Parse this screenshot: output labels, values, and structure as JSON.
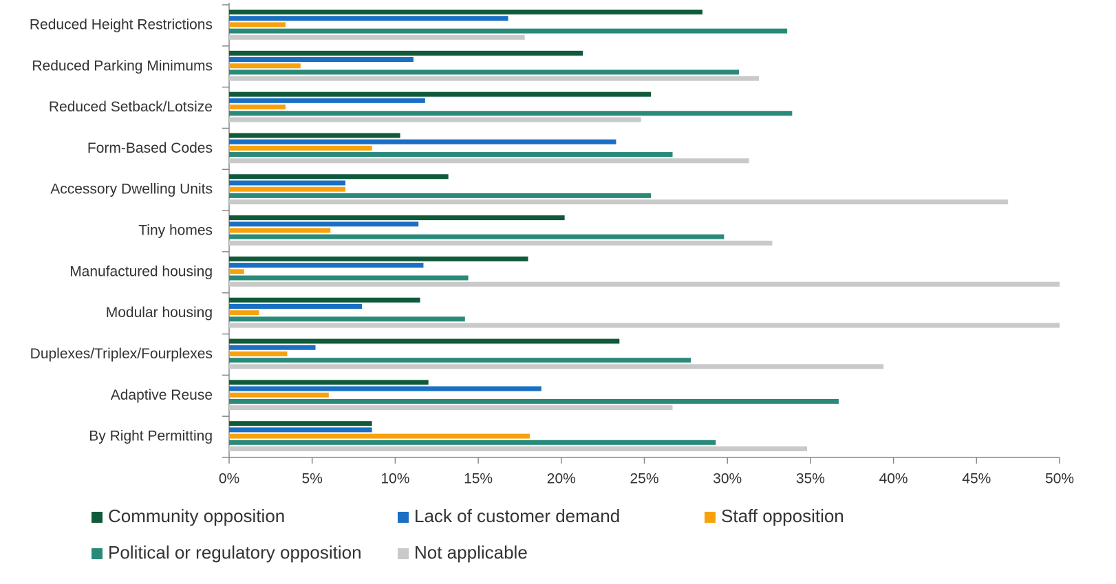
{
  "chart_data": {
    "type": "bar",
    "orientation": "horizontal",
    "categories": [
      "Reduced Height Restrictions",
      "Reduced Parking Minimums",
      "Reduced Setback/Lotsize",
      "Form-Based Codes",
      "Accessory Dwelling Units",
      "Tiny homes",
      "Manufactured housing",
      "Modular housing",
      "Duplexes/Triplex/Fourplexes",
      "Adaptive Reuse",
      "By Right Permitting"
    ],
    "series": [
      {
        "name": "Community opposition",
        "color": "#0f5a3a",
        "values": [
          28.5,
          21.3,
          25.4,
          10.3,
          13.2,
          20.2,
          18.0,
          11.5,
          23.5,
          12.0,
          8.6
        ]
      },
      {
        "name": "Lack of customer demand",
        "color": "#1a6fc4",
        "values": [
          16.8,
          11.1,
          11.8,
          23.3,
          7.0,
          11.4,
          11.7,
          8.0,
          5.2,
          18.8,
          8.6
        ]
      },
      {
        "name": "Staff opposition",
        "color": "#f7a20c",
        "values": [
          3.4,
          4.3,
          3.4,
          8.6,
          7.0,
          6.1,
          0.9,
          1.8,
          3.5,
          6.0,
          18.1
        ]
      },
      {
        "name": "Political or regulatory opposition",
        "color": "#2a8a7a",
        "values": [
          33.6,
          30.7,
          33.9,
          26.7,
          25.4,
          29.8,
          14.4,
          14.2,
          27.8,
          36.7,
          29.3
        ]
      },
      {
        "name": "Not applicable",
        "color": "#c9c9c9",
        "values": [
          17.8,
          31.9,
          24.8,
          31.3,
          46.9,
          32.7,
          50,
          50,
          39.4,
          26.7,
          34.8
        ]
      }
    ],
    "xlim": [
      0,
      50
    ],
    "xticks": [
      {
        "value": 0,
        "label": "0%"
      },
      {
        "value": 5,
        "label": "5%"
      },
      {
        "value": 10,
        "label": "10%"
      },
      {
        "value": 15,
        "label": "15%"
      },
      {
        "value": 20,
        "label": "20%"
      },
      {
        "value": 25,
        "label": "25%"
      },
      {
        "value": 30,
        "label": "30%"
      },
      {
        "value": 35,
        "label": "35%"
      },
      {
        "value": 40,
        "label": "40%"
      },
      {
        "value": 45,
        "label": "45%"
      },
      {
        "value": 50,
        "label": "50%"
      }
    ],
    "legend": "bottom",
    "grid": false
  }
}
